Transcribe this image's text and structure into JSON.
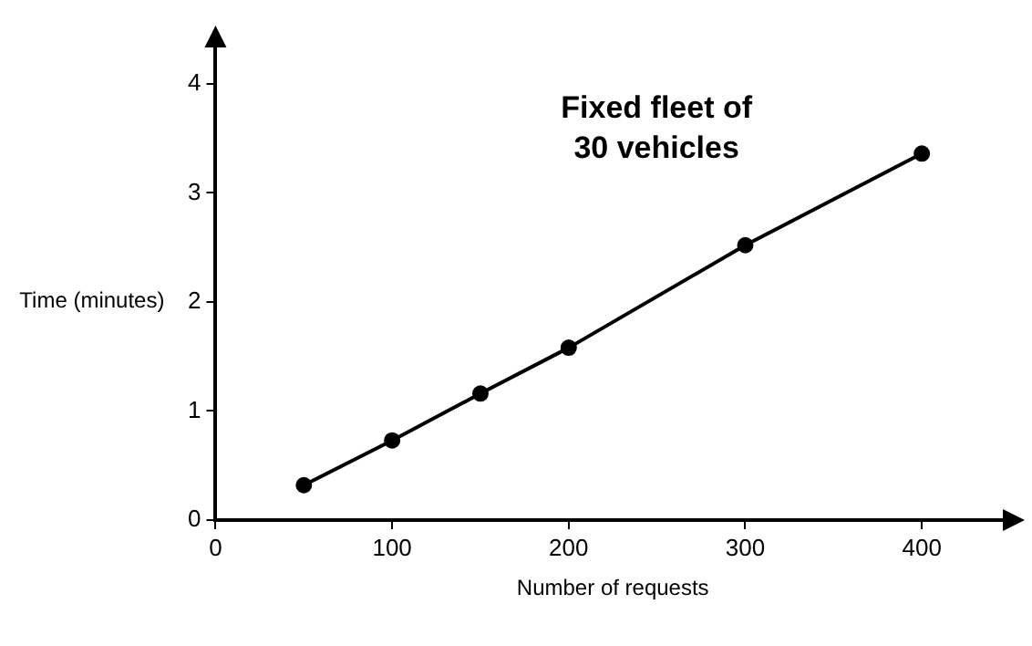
{
  "chart_data": {
    "type": "line",
    "title": "Fixed fleet of\n30 vehicles",
    "xlabel": "Number of requests",
    "ylabel": "Time (minutes)",
    "x": [
      50,
      100,
      150,
      200,
      300,
      400
    ],
    "series": [
      {
        "color": "#000000",
        "values": [
          0.32,
          0.73,
          1.16,
          1.58,
          2.52,
          3.36
        ]
      }
    ],
    "xlim": [
      0,
      450
    ],
    "ylim": [
      0,
      4.4
    ],
    "xticks": [
      0,
      100,
      200,
      300,
      400
    ],
    "yticks": [
      0,
      1,
      2,
      3,
      4
    ],
    "grid": false,
    "legend": false,
    "marker": "circle",
    "line_style": "solid"
  }
}
